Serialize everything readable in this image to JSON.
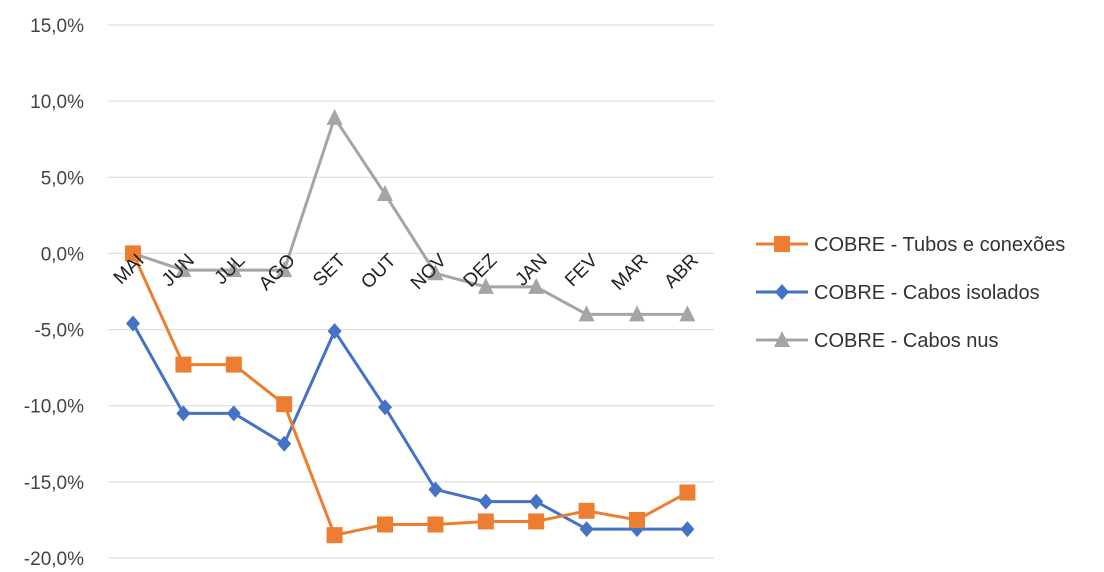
{
  "chart_data": {
    "type": "line",
    "title": "",
    "xlabel": "",
    "ylabel": "",
    "categories": [
      "MAI",
      "JUN",
      "JUL",
      "AGO",
      "SET",
      "OUT",
      "NOV",
      "DEZ",
      "JAN",
      "FEV",
      "MAR",
      "ABR"
    ],
    "y_ticks": [
      "15,0%",
      "10,0%",
      "5,0%",
      "0,0%",
      "-5,0%",
      "-10,0%",
      "-15,0%",
      "-20,0%"
    ],
    "ylim": [
      -20,
      15
    ],
    "y_unit": "%",
    "grid": true,
    "legend_position": "right",
    "series": [
      {
        "name": "COBRE - Tubos e conexões",
        "color": "#ED7D31",
        "marker": "square",
        "values": [
          0.0,
          -7.3,
          -7.3,
          -9.9,
          -18.5,
          -17.8,
          -17.8,
          -17.6,
          -17.6,
          -16.9,
          -17.5,
          -15.7
        ]
      },
      {
        "name": "COBRE - Cabos isolados",
        "color": "#4472C4",
        "marker": "diamond",
        "values": [
          -4.6,
          -10.5,
          -10.5,
          -12.5,
          -5.1,
          -10.1,
          -15.5,
          -16.3,
          -16.3,
          -18.1,
          -18.1,
          -18.1
        ]
      },
      {
        "name": "COBRE - Cabos nus",
        "color": "#A5A5A5",
        "marker": "triangle",
        "values": [
          0.0,
          -1.1,
          -1.1,
          -1.1,
          8.9,
          3.9,
          -1.3,
          -2.2,
          -2.2,
          -4.0,
          -4.0,
          -4.0
        ]
      }
    ]
  }
}
